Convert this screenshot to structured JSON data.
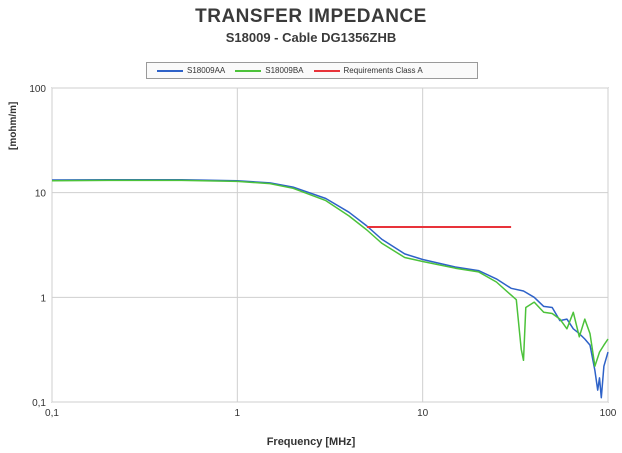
{
  "chart_data": {
    "type": "line",
    "title": "TRANSFER IMPEDANCE",
    "subtitle": "S18009 - Cable DG1356ZHB",
    "xlabel": "Frequency [MHz]",
    "ylabel": "[mohm/m]",
    "x_scale": "log",
    "y_scale": "log",
    "xlim": [
      0.1,
      100
    ],
    "ylim": [
      0.1,
      100
    ],
    "x_ticks": [
      "0,1",
      "1",
      "10",
      "100"
    ],
    "y_ticks": [
      "100",
      "10",
      "1",
      "0,1"
    ],
    "grid": true,
    "legend_position": "top",
    "series": [
      {
        "name": "S18009AA",
        "color": "#2e62c8",
        "x": [
          0.1,
          0.2,
          0.5,
          1,
          1.5,
          2,
          3,
          4,
          5,
          6,
          8,
          10,
          15,
          20,
          25,
          30,
          35,
          40,
          45,
          50,
          55,
          60,
          65,
          70,
          75,
          80,
          85,
          88,
          90,
          92,
          95,
          100
        ],
        "y": [
          13.2,
          13.3,
          13.3,
          13.0,
          12.4,
          11.3,
          8.8,
          6.5,
          4.8,
          3.6,
          2.6,
          2.3,
          1.95,
          1.8,
          1.5,
          1.22,
          1.15,
          1.0,
          0.82,
          0.8,
          0.6,
          0.62,
          0.5,
          0.45,
          0.4,
          0.35,
          0.2,
          0.13,
          0.17,
          0.11,
          0.22,
          0.3
        ]
      },
      {
        "name": "S18009BA",
        "color": "#4cc23a",
        "x": [
          0.1,
          0.2,
          0.5,
          1,
          1.5,
          2,
          3,
          4,
          5,
          6,
          8,
          10,
          15,
          20,
          25,
          30,
          32,
          34,
          35,
          36,
          40,
          45,
          50,
          55,
          60,
          65,
          70,
          75,
          80,
          85,
          90,
          95,
          100
        ],
        "y": [
          13.0,
          13.1,
          13.1,
          12.8,
          12.2,
          11.0,
          8.4,
          6.0,
          4.4,
          3.3,
          2.4,
          2.2,
          1.9,
          1.75,
          1.4,
          1.05,
          0.95,
          0.32,
          0.25,
          0.8,
          0.9,
          0.72,
          0.7,
          0.62,
          0.5,
          0.72,
          0.42,
          0.62,
          0.45,
          0.22,
          0.3,
          0.35,
          0.4
        ]
      },
      {
        "name": "Requirements Class  A",
        "color": "#e8333a",
        "x": [
          5,
          30
        ],
        "y": [
          4.7,
          4.7
        ]
      }
    ]
  }
}
